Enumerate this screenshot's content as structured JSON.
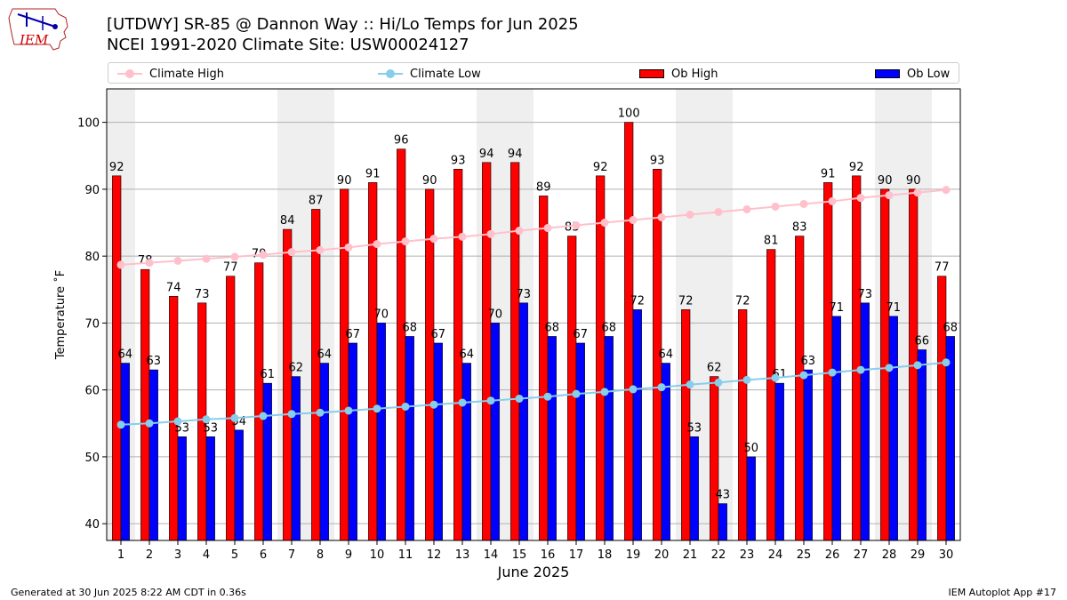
{
  "header": {
    "logo_text": "IEM",
    "title_line1": "[UTDWY] SR-85 @ Dannon Way  :: Hi/Lo Temps for Jun 2025",
    "title_line2": "NCEI 1991-2020 Climate Site: USW00024127"
  },
  "footer": {
    "generated": "Generated at 30 Jun 2025 8:22 AM CDT in 0.36s",
    "app": "IEM Autoplot App #17"
  },
  "chart_data": {
    "type": "bar",
    "title": "[UTDWY] SR-85 @ Dannon Way  :: Hi/Lo Temps for Jun 2025",
    "subtitle": "NCEI 1991-2020 Climate Site: USW00024127",
    "xlabel": "June 2025",
    "ylabel": "Temperature ˚F",
    "ylim": [
      37.5,
      105
    ],
    "yticks": [
      40,
      50,
      60,
      70,
      80,
      90,
      100
    ],
    "grid": "horizontal",
    "legend_placement": "top",
    "weekend_shading_days": [
      [
        1
      ],
      [
        7,
        8
      ],
      [
        14,
        15
      ],
      [
        21,
        22
      ],
      [
        28,
        29
      ]
    ],
    "categories": [
      "1",
      "2",
      "3",
      "4",
      "5",
      "6",
      "7",
      "8",
      "9",
      "10",
      "11",
      "12",
      "13",
      "14",
      "15",
      "16",
      "17",
      "18",
      "19",
      "20",
      "21",
      "22",
      "23",
      "24",
      "25",
      "26",
      "27",
      "28",
      "29",
      "30"
    ],
    "series": [
      {
        "name": "Ob High",
        "kind": "bar",
        "color": "#ff0000",
        "values": [
          92,
          78,
          74,
          73,
          77,
          79,
          84,
          87,
          90,
          91,
          96,
          90,
          93,
          94,
          94,
          89,
          83,
          92,
          100,
          93,
          72,
          62,
          72,
          81,
          83,
          91,
          92,
          90,
          90,
          77
        ]
      },
      {
        "name": "Ob Low",
        "kind": "bar",
        "color": "#0000ff",
        "values": [
          64,
          63,
          53,
          53,
          54,
          61,
          62,
          64,
          67,
          70,
          68,
          67,
          64,
          70,
          73,
          68,
          67,
          68,
          72,
          64,
          53,
          43,
          50,
          61,
          63,
          71,
          73,
          71,
          66,
          68
        ]
      },
      {
        "name": "Climate High",
        "kind": "line",
        "color": "#ffc0cb",
        "values": [
          78.7,
          79.0,
          79.3,
          79.6,
          79.9,
          80.2,
          80.6,
          80.9,
          81.3,
          81.8,
          82.2,
          82.6,
          82.9,
          83.3,
          83.8,
          84.2,
          84.6,
          85.0,
          85.4,
          85.8,
          86.2,
          86.6,
          87.0,
          87.4,
          87.8,
          88.2,
          88.7,
          89.1,
          89.5,
          89.9
        ]
      },
      {
        "name": "Climate Low",
        "kind": "line",
        "color": "#87ceeb",
        "values": [
          54.8,
          55.0,
          55.3,
          55.6,
          55.8,
          56.1,
          56.4,
          56.6,
          56.9,
          57.2,
          57.5,
          57.8,
          58.1,
          58.4,
          58.7,
          59.0,
          59.4,
          59.7,
          60.1,
          60.4,
          60.8,
          61.1,
          61.5,
          61.8,
          62.2,
          62.6,
          63.0,
          63.3,
          63.7,
          64.1
        ]
      }
    ]
  }
}
